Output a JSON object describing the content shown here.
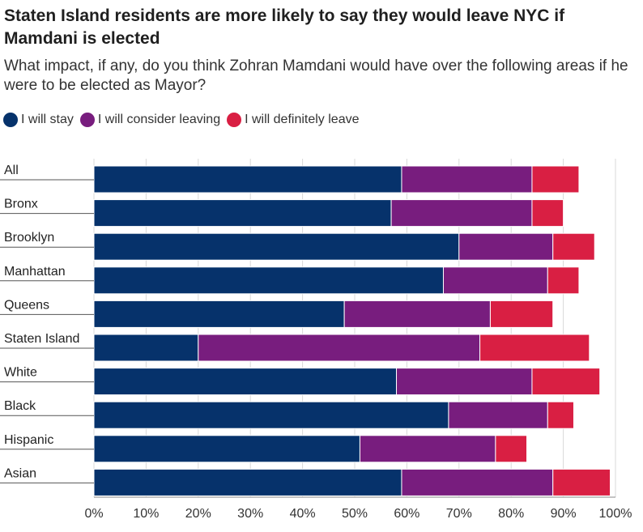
{
  "chart_data": {
    "type": "bar",
    "orientation": "horizontal",
    "stacked": true,
    "title": "Staten Island residents are more likely to say they would leave NYC if Mamdani is elected",
    "subtitle": "What impact, if any, do you think Zohran Mamdani would have over the following areas if he were to be elected as Mayor?",
    "categories": [
      "All",
      "Bronx",
      "Brooklyn",
      "Manhattan",
      "Queens",
      "Staten Island",
      "White",
      "Black",
      "Hispanic",
      "Asian"
    ],
    "series": [
      {
        "name": "I will stay",
        "color": "#06326b",
        "values": [
          59,
          57,
          70,
          67,
          48,
          20,
          58,
          68,
          51,
          59
        ]
      },
      {
        "name": "I will consider leaving",
        "color": "#781d7e",
        "values": [
          25,
          27,
          18,
          20,
          28,
          54,
          26,
          19,
          26,
          29
        ]
      },
      {
        "name": "I will definitely leave",
        "color": "#d91f43",
        "values": [
          9,
          6,
          8,
          6,
          12,
          21,
          13,
          5,
          6,
          11
        ]
      }
    ],
    "xlim": [
      0,
      100
    ],
    "x_ticks": [
      "0%",
      "10%",
      "20%",
      "30%",
      "40%",
      "50%",
      "60%",
      "70%",
      "80%",
      "90%",
      "100%"
    ],
    "grid": "vertical",
    "legend_position": "top-left"
  }
}
